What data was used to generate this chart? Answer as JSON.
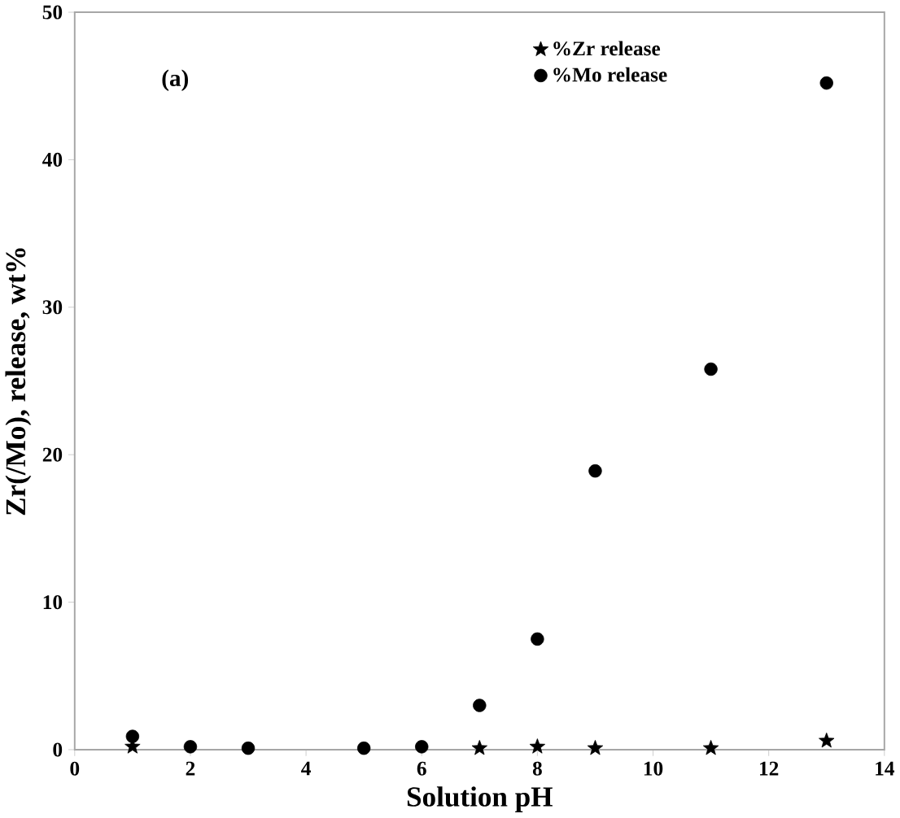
{
  "chart_data": {
    "type": "scatter",
    "xlabel": "Solution pH",
    "ylabel": "Zr(/Mo), release, wt%",
    "annotations": [
      "(a)"
    ],
    "xlim": [
      0,
      14
    ],
    "xticks": [
      0,
      2,
      4,
      6,
      8,
      10,
      12,
      14
    ],
    "ylim": [
      0,
      50
    ],
    "yticks": [
      0,
      10,
      20,
      30,
      40,
      50
    ],
    "legend": "top right",
    "grid": false,
    "x": [
      1,
      2,
      3,
      5,
      6,
      7,
      8,
      9,
      11,
      13
    ],
    "series": [
      {
        "name": "%Zr release",
        "color": "#000000",
        "marker": "star",
        "values": [
          0.2,
          null,
          null,
          null,
          null,
          0.1,
          0.2,
          0.1,
          0.1,
          0.6
        ]
      },
      {
        "name": "%Mo release",
        "color": "#000000",
        "marker": "circle",
        "values": [
          0.9,
          0.2,
          0.1,
          0.1,
          0.2,
          3.0,
          7.5,
          18.9,
          25.8,
          45.2
        ]
      }
    ]
  }
}
